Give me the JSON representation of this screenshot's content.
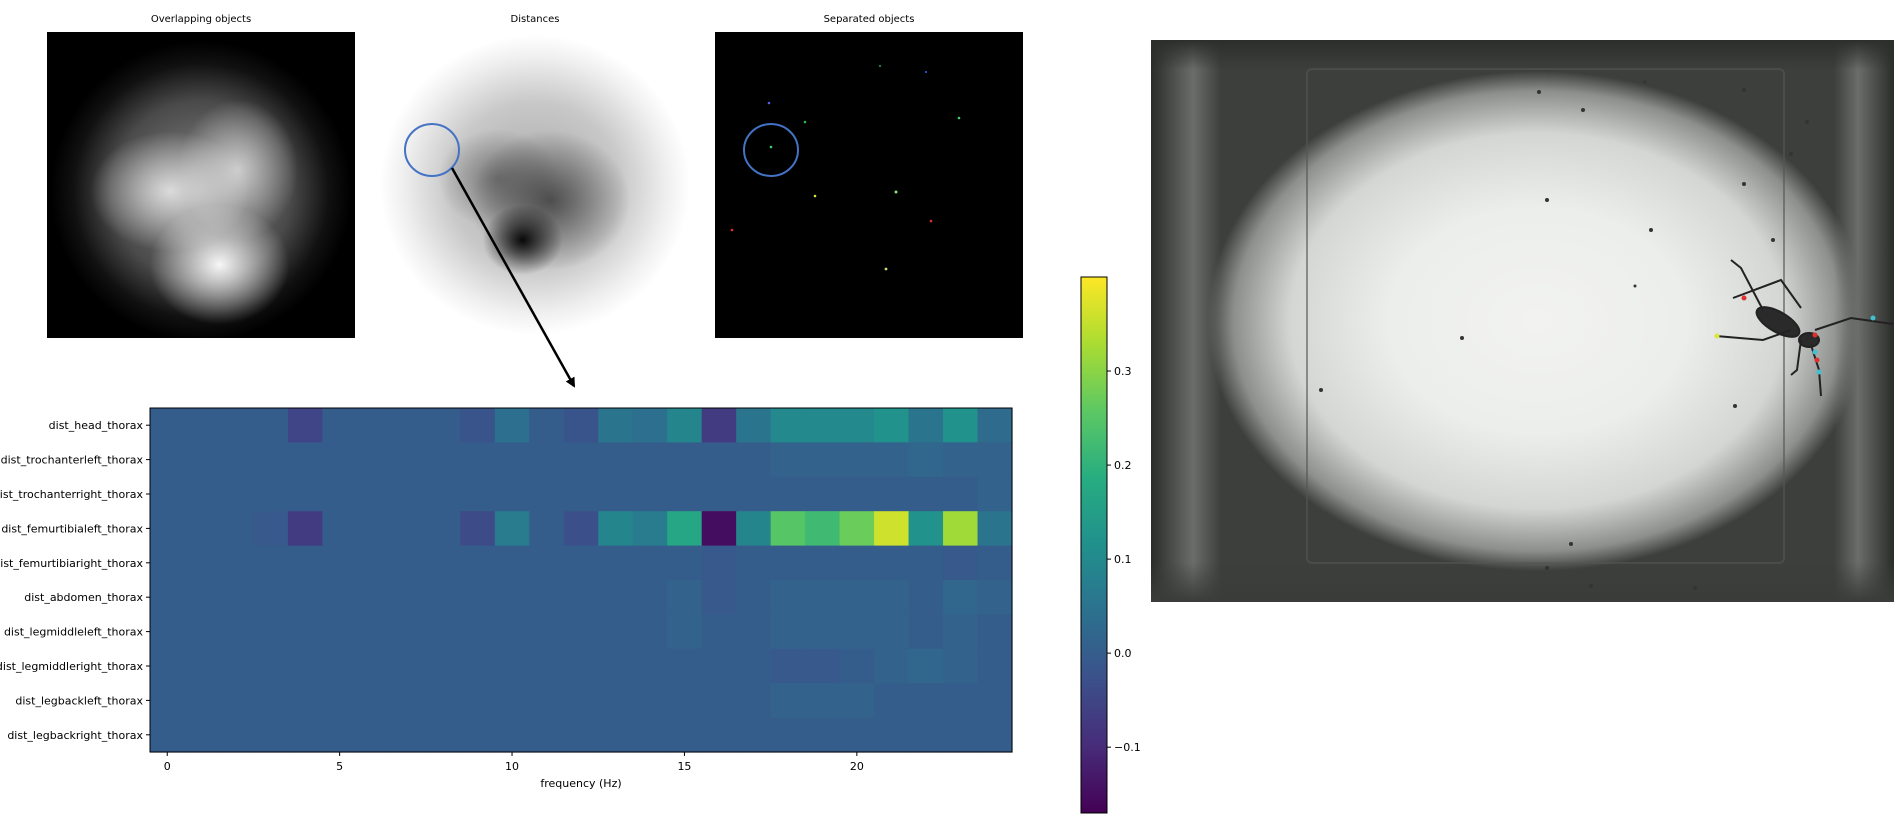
{
  "panels": {
    "overlapping": {
      "title": "Overlapping objects"
    },
    "distances": {
      "title": "Distances"
    },
    "separated": {
      "title": "Separated objects"
    }
  },
  "colors": {
    "circle": "#4472c4",
    "arrow": "#000000",
    "dots": [
      "#5a5af0",
      "#2db84a",
      "#d9e63a",
      "#8de060",
      "#e03030",
      "#c8e070",
      "#3050d0",
      "#40d070",
      "#3aa050"
    ]
  },
  "chart_data": {
    "type": "heatmap",
    "title": "",
    "xlabel": "frequency (Hz)",
    "ylabel": "",
    "xticks": [
      0,
      5,
      10,
      15,
      20
    ],
    "xlim": [
      -0.5,
      24.5
    ],
    "rows": [
      "dist_head_thorax",
      "dist_trochanterleft_thorax",
      "dist_trochanterright_thorax",
      "dist_femurtibialeft_thorax",
      "dist_femurtibiaright_thorax",
      "dist_abdomen_thorax",
      "dist_legmiddleleft_thorax",
      "dist_legmiddleright_thorax",
      "dist_legbackleft_thorax",
      "dist_legbackright_thorax"
    ],
    "values": [
      [
        0.0,
        0.0,
        0.0,
        0.0,
        -0.05,
        0.0,
        0.0,
        0.0,
        0.0,
        -0.02,
        0.04,
        0.0,
        -0.02,
        0.05,
        0.04,
        0.09,
        -0.07,
        0.05,
        0.1,
        0.1,
        0.1,
        0.12,
        0.05,
        0.12,
        0.03
      ],
      [
        0.0,
        0.0,
        0.0,
        0.0,
        0.0,
        0.0,
        0.0,
        0.0,
        0.0,
        0.0,
        0.0,
        0.0,
        0.0,
        0.0,
        0.0,
        0.0,
        0.0,
        0.0,
        0.01,
        0.01,
        0.01,
        0.01,
        0.02,
        0.01,
        0.01
      ],
      [
        0.0,
        0.0,
        0.0,
        0.0,
        0.0,
        0.0,
        0.0,
        0.0,
        0.0,
        0.0,
        0.0,
        0.0,
        0.0,
        0.0,
        0.0,
        0.0,
        0.0,
        0.0,
        0.0,
        0.0,
        0.0,
        0.0,
        0.0,
        0.0,
        0.01
      ],
      [
        0.0,
        0.0,
        0.0,
        -0.01,
        -0.07,
        0.0,
        0.0,
        0.0,
        0.0,
        -0.04,
        0.07,
        0.0,
        -0.03,
        0.09,
        0.07,
        0.17,
        -0.15,
        0.09,
        0.25,
        0.22,
        0.27,
        0.36,
        0.12,
        0.32,
        0.05
      ],
      [
        0.0,
        0.0,
        0.0,
        0.0,
        0.0,
        0.0,
        0.0,
        0.0,
        0.0,
        0.0,
        0.0,
        0.0,
        0.0,
        0.0,
        0.0,
        0.0,
        -0.01,
        0.0,
        0.0,
        0.0,
        0.0,
        0.0,
        0.0,
        -0.01,
        0.0
      ],
      [
        0.0,
        0.0,
        0.0,
        0.0,
        0.0,
        0.0,
        0.0,
        0.0,
        0.0,
        0.0,
        0.0,
        0.0,
        0.0,
        0.0,
        0.0,
        0.01,
        -0.01,
        0.0,
        0.01,
        0.01,
        0.01,
        0.01,
        0.0,
        0.02,
        0.01
      ],
      [
        0.0,
        0.0,
        0.0,
        0.0,
        0.0,
        0.0,
        0.0,
        0.0,
        0.0,
        0.0,
        0.0,
        0.0,
        0.0,
        0.0,
        0.0,
        0.01,
        0.0,
        0.0,
        0.01,
        0.01,
        0.01,
        0.01,
        0.0,
        0.01,
        0.0
      ],
      [
        0.0,
        0.0,
        0.0,
        0.0,
        0.0,
        0.0,
        0.0,
        0.0,
        0.0,
        0.0,
        0.0,
        0.0,
        0.0,
        0.0,
        0.0,
        0.0,
        0.0,
        0.0,
        -0.01,
        -0.01,
        0.0,
        0.01,
        0.02,
        0.01,
        0.0
      ],
      [
        0.0,
        0.0,
        0.0,
        0.0,
        0.0,
        0.0,
        0.0,
        0.0,
        0.0,
        0.0,
        0.0,
        0.0,
        0.0,
        0.0,
        0.0,
        0.0,
        0.0,
        0.0,
        0.01,
        0.01,
        0.01,
        0.0,
        0.0,
        0.0,
        0.0
      ],
      [
        0.0,
        0.0,
        0.0,
        0.0,
        0.0,
        0.0,
        0.0,
        0.0,
        0.0,
        0.0,
        0.0,
        0.0,
        0.0,
        0.0,
        0.0,
        0.0,
        0.0,
        0.0,
        0.0,
        0.0,
        0.0,
        0.0,
        0.0,
        0.0,
        0.0
      ]
    ],
    "colorbar": {
      "cmap": "viridis",
      "vmin": -0.17,
      "vmax": 0.4,
      "ticks": [
        -0.1,
        0.0,
        0.1,
        0.2,
        0.3
      ],
      "tick_labels": [
        "−0.1",
        "0.0",
        "0.1",
        "0.2",
        "0.3"
      ]
    }
  }
}
